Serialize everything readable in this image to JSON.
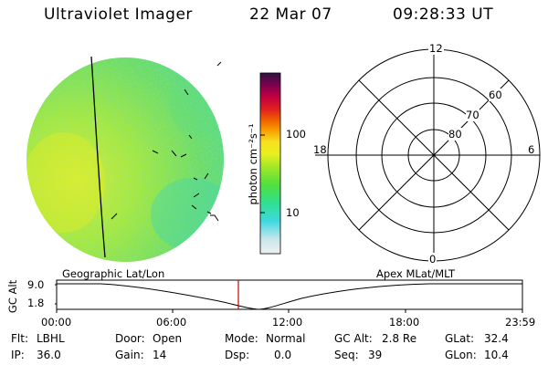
{
  "header": {
    "instrument": "Ultraviolet Imager",
    "date": "22 Mar 07",
    "time": "09:28:33 UT"
  },
  "colorbar": {
    "label": "photon cm⁻²s⁻¹",
    "ticks": [
      {
        "value": 100,
        "label": "100"
      },
      {
        "value": 10,
        "label": "10"
      }
    ],
    "colors": [
      "#f0f0f0",
      "#c8e6ec",
      "#40d8e0",
      "#30e090",
      "#50e040",
      "#a0e828",
      "#e8f020",
      "#f8e020",
      "#f8a000",
      "#f06000",
      "#e02020",
      "#c00040",
      "#800050",
      "#301040"
    ]
  },
  "polar_plot": {
    "mlt_labels": {
      "top": "12",
      "left": "18",
      "right": "6",
      "bottom": "0"
    },
    "lat_labels": [
      {
        "value": 60,
        "label": "60"
      },
      {
        "value": 70,
        "label": "70"
      },
      {
        "value": 80,
        "label": "80"
      }
    ]
  },
  "timeline": {
    "left_label": "Geographic Lat/Lon",
    "right_label": "Apex MLat/MLT",
    "ylabel": "GC Alt",
    "ymax_label": "9.0",
    "ymin_label": "1.8",
    "x_ticks": [
      "00:00",
      "06:00",
      "12:00",
      "18:00",
      "23:59"
    ],
    "current_marker_time": "09:28",
    "marker_color": "#cc0000"
  },
  "info": {
    "flt_label": "Flt:",
    "flt_value": "LBHL",
    "ip_label": "IP:",
    "ip_value": "36.0",
    "door_label": "Door:",
    "door_value": "Open",
    "gain_label": "Gain:",
    "gain_value": "14",
    "mode_label": "Mode:",
    "mode_value": "Normal",
    "dsp_label": "Dsp:",
    "dsp_value": "0.0",
    "gcalt_label": "GC Alt:",
    "gcalt_value": "2.8 Re",
    "seq_label": "Seq:",
    "seq_value": "39",
    "glat_label": "GLat:",
    "glat_value": "32.4",
    "glon_label": "GLon:",
    "glon_value": "10.4"
  }
}
